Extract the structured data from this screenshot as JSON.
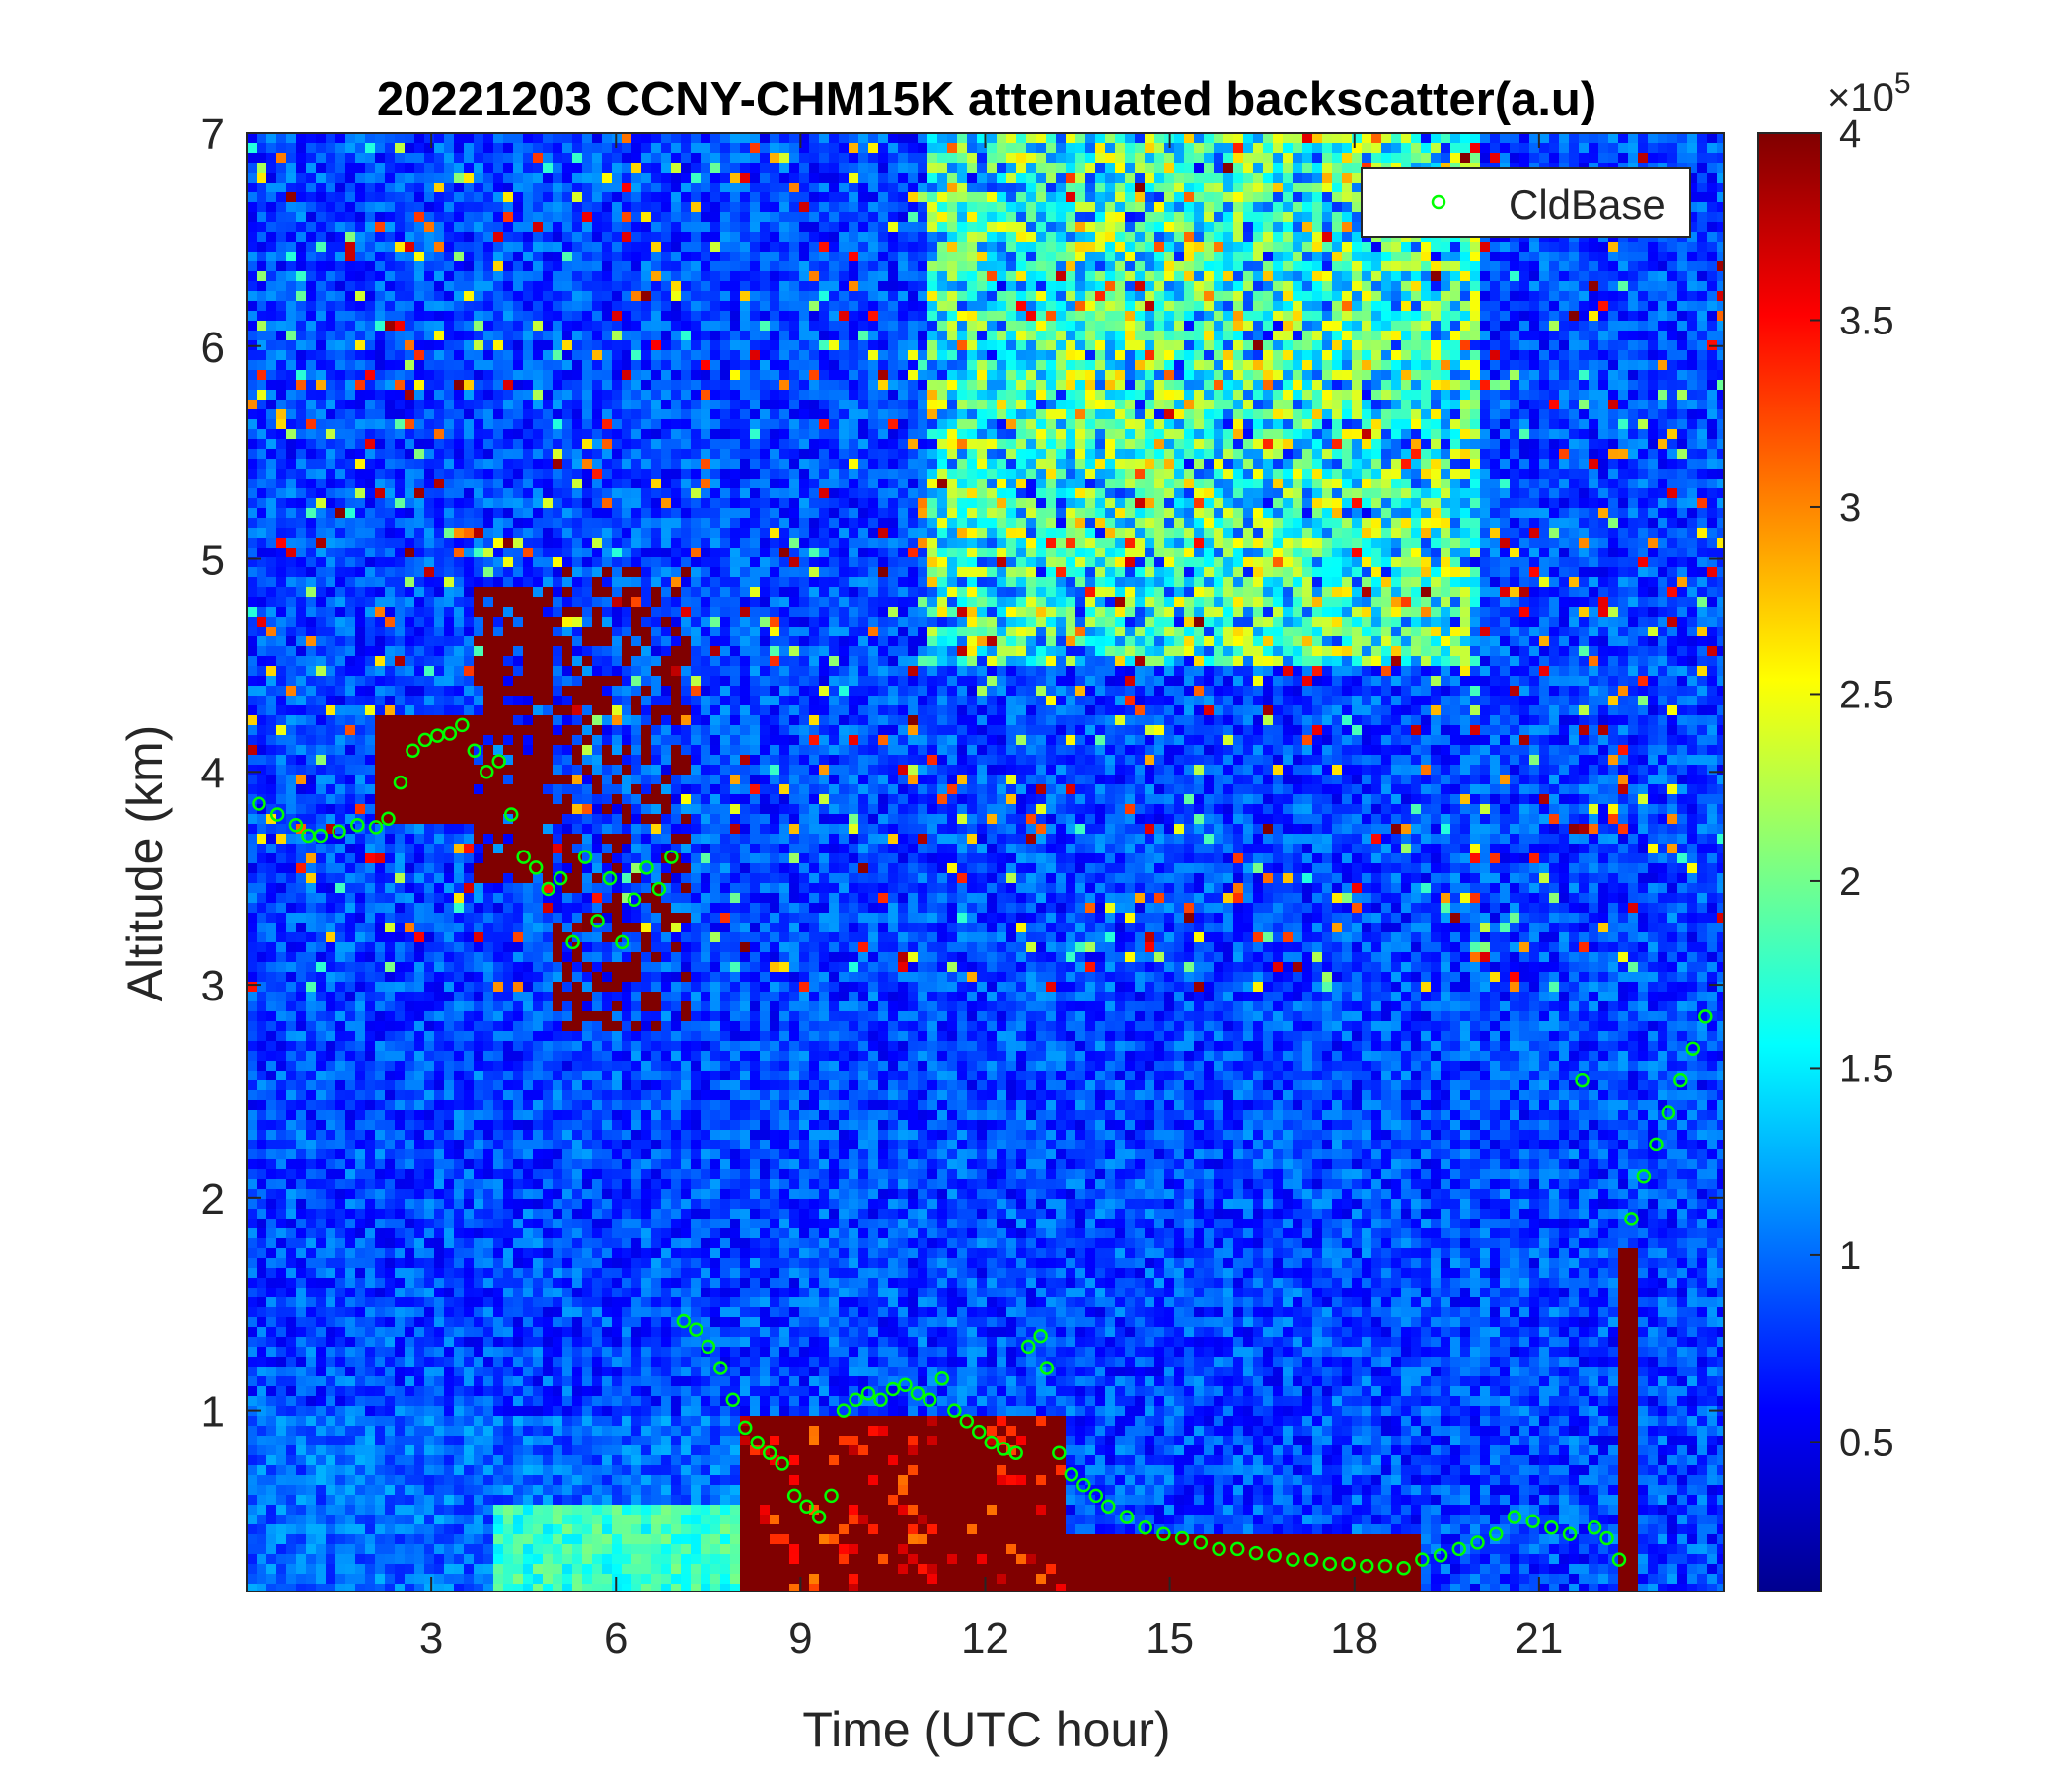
{
  "chart_data": {
    "type": "heatmap",
    "title": "20221203 CCNY-CHM15K attenuated backscatter(a.u)",
    "xlabel": "Time (UTC hour)",
    "ylabel": "Altitude (km)",
    "xlim": [
      0,
      24
    ],
    "ylim": [
      0.15,
      7
    ],
    "x_ticks": [
      3,
      6,
      9,
      12,
      15,
      18,
      21
    ],
    "x_tick_labels": [
      "3",
      "6",
      "9",
      "12",
      "15",
      "18",
      "21"
    ],
    "y_ticks": [
      1,
      2,
      3,
      4,
      5,
      6,
      7
    ],
    "y_tick_labels": [
      "1",
      "2",
      "3",
      "4",
      "5",
      "6",
      "7"
    ],
    "colormap": "jet",
    "colorbar": {
      "range": [
        10000,
        400000
      ],
      "ticks": [
        50000,
        100000,
        150000,
        200000,
        250000,
        300000,
        350000,
        400000
      ],
      "tick_labels": [
        "0.5",
        "1",
        "1.5",
        "2",
        "2.5",
        "3",
        "3.5",
        "4"
      ],
      "exponent_label": "×10",
      "exponent_power": "5"
    },
    "legend": {
      "position": "top-right",
      "entries": [
        "CldBase"
      ]
    },
    "series": [
      {
        "name": "CldBase",
        "marker": "circle",
        "color": "#00ff00",
        "x": [
          0.2,
          0.5,
          0.8,
          1.0,
          1.2,
          1.5,
          1.8,
          2.1,
          2.3,
          2.5,
          2.7,
          2.9,
          3.1,
          3.3,
          3.5,
          3.7,
          3.9,
          4.1,
          4.3,
          4.5,
          4.7,
          4.9,
          5.1,
          5.3,
          5.5,
          5.7,
          5.9,
          6.1,
          6.3,
          6.5,
          6.7,
          6.9,
          7.1,
          7.3,
          7.5,
          7.7,
          7.9,
          8.1,
          8.3,
          8.5,
          8.7,
          8.9,
          9.1,
          9.3,
          9.5,
          9.7,
          9.9,
          10.1,
          10.3,
          10.5,
          10.7,
          10.9,
          11.1,
          11.3,
          11.5,
          11.7,
          11.9,
          12.1,
          12.3,
          12.5,
          12.7,
          12.9,
          13.0,
          13.2,
          13.4,
          13.6,
          13.8,
          14.0,
          14.3,
          14.6,
          14.9,
          15.2,
          15.5,
          15.8,
          16.1,
          16.4,
          16.7,
          17.0,
          17.3,
          17.6,
          17.9,
          18.2,
          18.5,
          18.8,
          19.1,
          19.4,
          19.7,
          20.0,
          20.3,
          20.6,
          20.9,
          21.2,
          21.5,
          21.7,
          21.9,
          22.1,
          22.3,
          22.5,
          22.7,
          22.9,
          23.1,
          23.3,
          23.5,
          23.7
        ],
        "y": [
          3.85,
          3.8,
          3.75,
          3.7,
          3.7,
          3.72,
          3.75,
          3.74,
          3.78,
          3.95,
          4.1,
          4.15,
          4.17,
          4.18,
          4.22,
          4.1,
          4.0,
          4.05,
          3.8,
          3.6,
          3.55,
          3.45,
          3.5,
          3.2,
          3.6,
          3.3,
          3.5,
          3.2,
          3.4,
          3.55,
          3.45,
          3.6,
          1.42,
          1.38,
          1.3,
          1.2,
          1.05,
          0.92,
          0.85,
          0.8,
          0.75,
          0.6,
          0.55,
          0.5,
          0.6,
          1.0,
          1.05,
          1.08,
          1.05,
          1.1,
          1.12,
          1.08,
          1.05,
          1.15,
          1.0,
          0.95,
          0.9,
          0.85,
          0.82,
          0.8,
          1.3,
          1.35,
          1.2,
          0.8,
          0.7,
          0.65,
          0.6,
          0.55,
          0.5,
          0.45,
          0.42,
          0.4,
          0.38,
          0.35,
          0.35,
          0.33,
          0.32,
          0.3,
          0.3,
          0.28,
          0.28,
          0.27,
          0.27,
          0.26,
          0.3,
          0.32,
          0.35,
          0.38,
          0.42,
          0.5,
          0.48,
          0.45,
          0.42,
          2.55,
          0.45,
          0.4,
          0.3,
          1.9,
          2.1,
          2.25,
          2.4,
          2.55,
          2.7,
          2.85
        ]
      }
    ]
  }
}
